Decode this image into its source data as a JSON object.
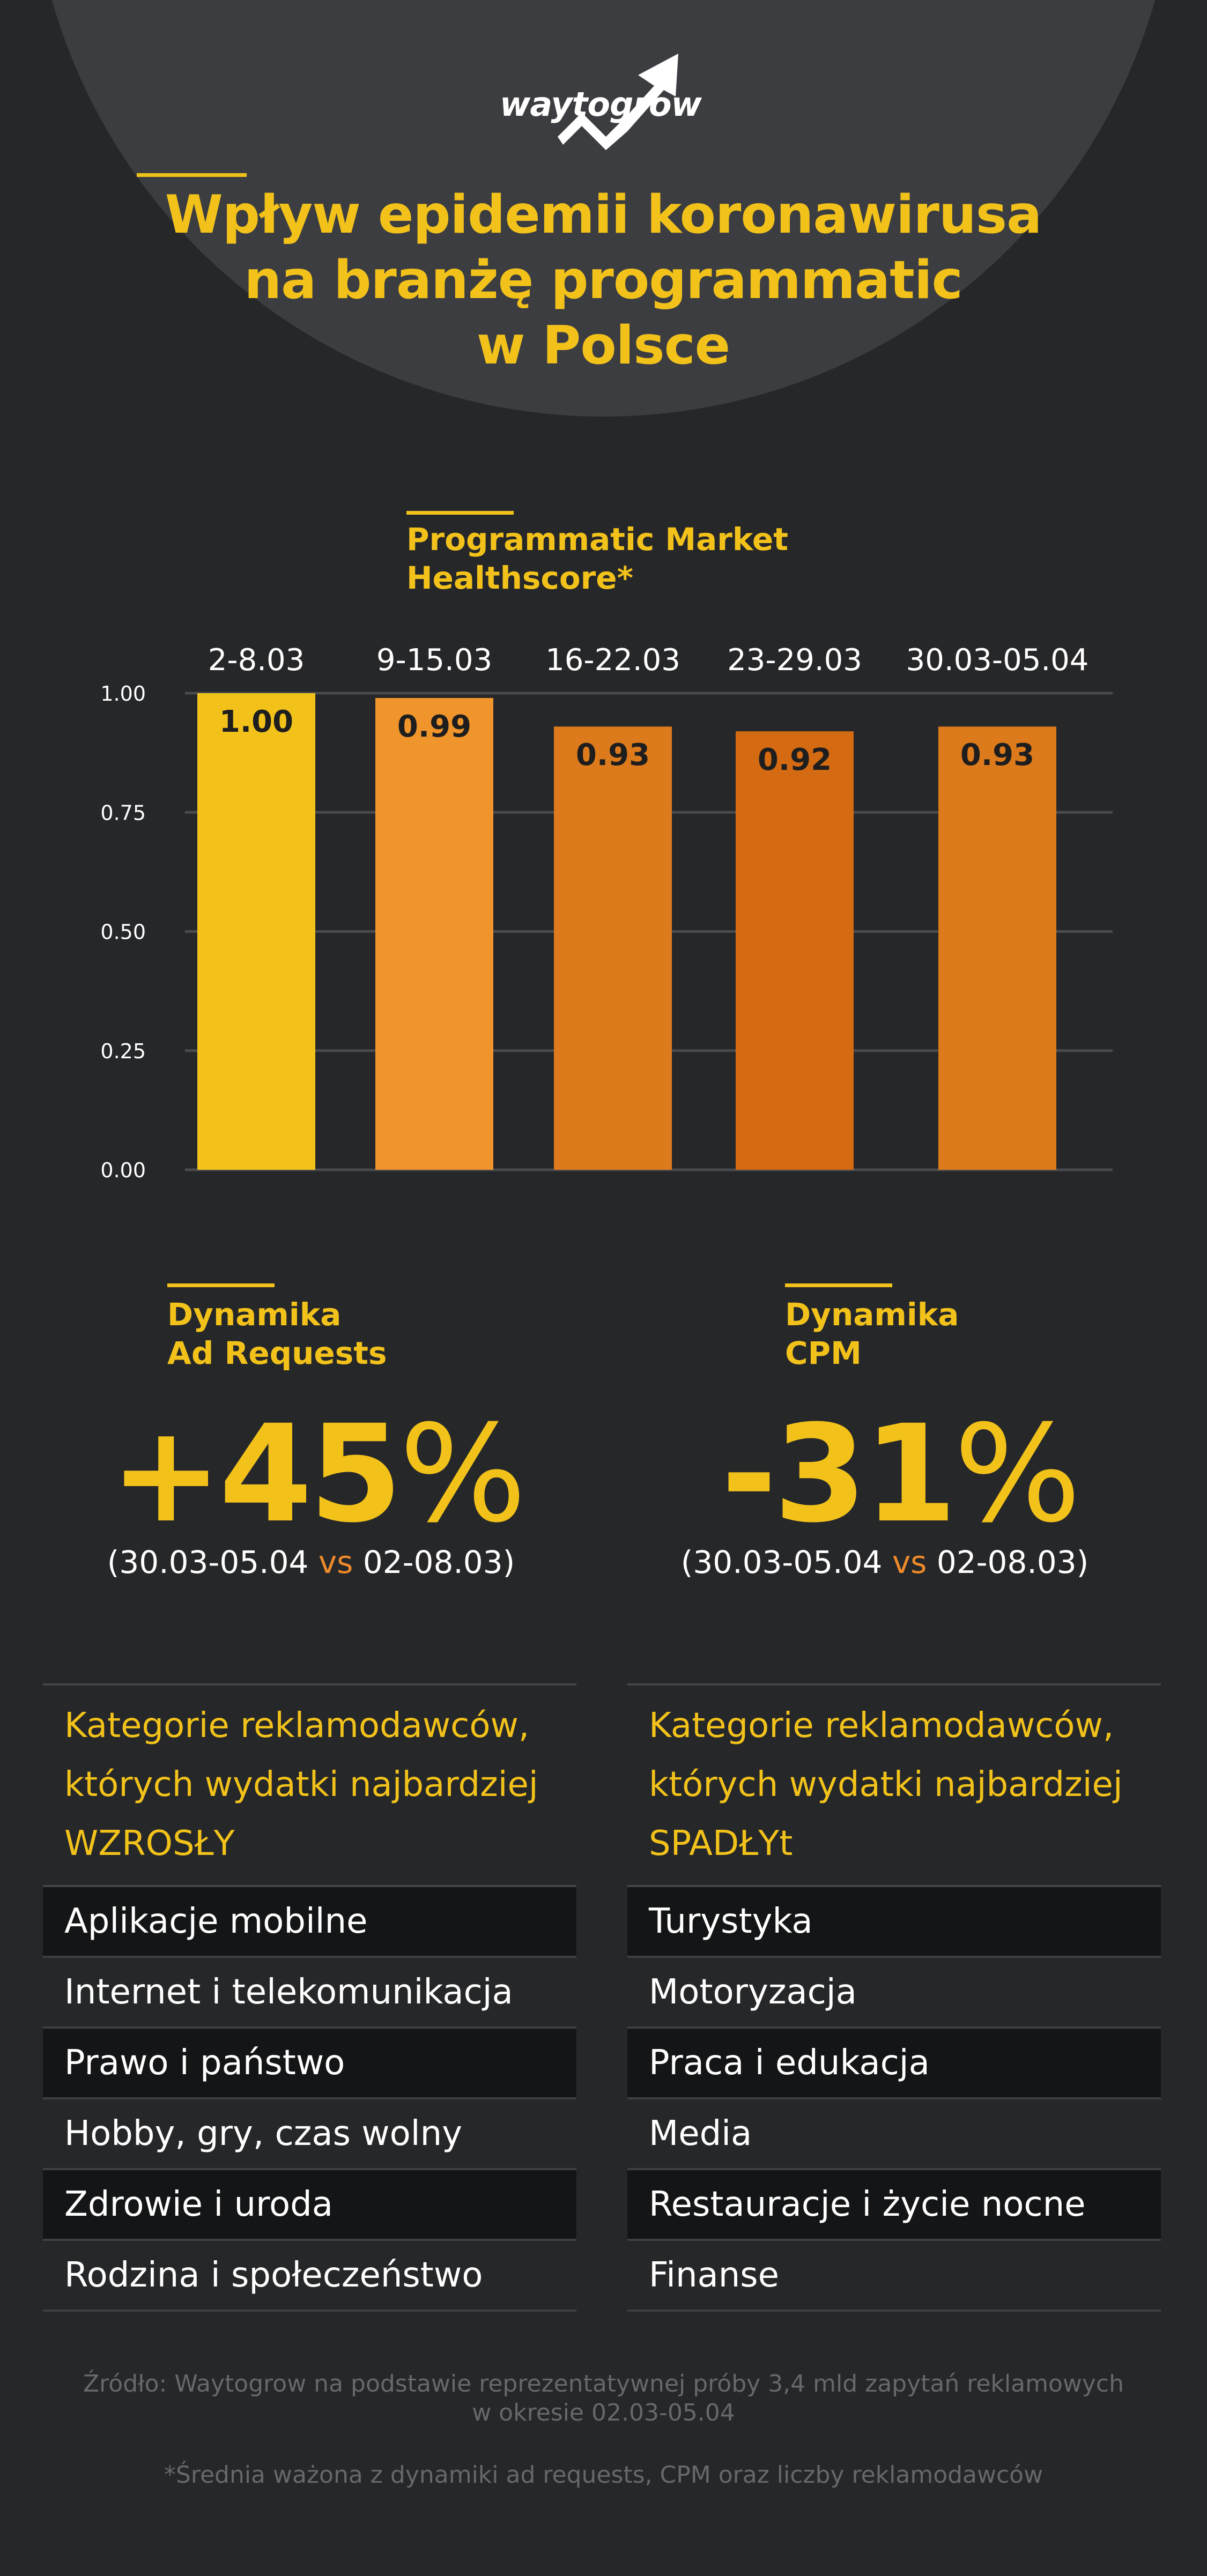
{
  "logo": {
    "text": "waytogrow"
  },
  "title": {
    "line1": "Wpływ epidemii koronawirusa",
    "line2": "na branżę programmatic",
    "line3": "w Polsce"
  },
  "chart_section_label": "Programmatic Market\nHealthscore*",
  "chart_data": {
    "type": "bar",
    "categories": [
      "2-8.03",
      "9-15.03",
      "16-22.03",
      "23-29.03",
      "30.03-05.04"
    ],
    "values": [
      1.0,
      0.99,
      0.93,
      0.92,
      0.93
    ],
    "value_labels": [
      "1.00",
      "0.99",
      "0.93",
      "0.92",
      "0.93"
    ],
    "ylim": [
      0,
      1.0
    ],
    "y_ticks": [
      "0.00",
      "0.25",
      "0.50",
      "0.75",
      "1.00"
    ],
    "y_tick_values": [
      0,
      0.25,
      0.5,
      0.75,
      1.0
    ],
    "bar_colors": [
      "#f2c21b",
      "#f0942c",
      "#dd7a1c",
      "#d46a12",
      "#dd7a1c"
    ],
    "grid": true,
    "title": "",
    "xlabel": "",
    "ylabel": ""
  },
  "ad_requests": {
    "label": "Dynamika\nAd Requests",
    "value": "+45",
    "percent": "%",
    "period_start": "(30.03-05.04 ",
    "vs": "vs",
    "period_end": " 02-08.03)"
  },
  "cpm": {
    "label": "Dynamika\nCPM",
    "value": "-31",
    "percent": "%",
    "period_start": "(30.03-05.04 ",
    "vs": "vs",
    "period_end": " 02-08.03)"
  },
  "increased": {
    "heading_line1": "Kategorie reklamodawców,",
    "heading_line2": "których wydatki najbardziej",
    "heading_line3": "WZROSŁY",
    "items": [
      "Aplikacje mobilne",
      "Internet i telekomunikacja",
      "Prawo i państwo",
      "Hobby, gry, czas wolny",
      "Zdrowie i uroda",
      "Rodzina i społeczeństwo"
    ]
  },
  "decreased": {
    "heading_line1": "Kategorie reklamodawców,",
    "heading_line2": "których wydatki najbardziej",
    "heading_line3": "SPADŁYt",
    "items": [
      "Turystyka",
      "Motoryzacja",
      "Praca i edukacja",
      "Media",
      "Restauracje i życie nocne",
      "Finanse"
    ]
  },
  "source": {
    "line1": "Źródło: Waytogrow na podstawie reprezentatywnej próby 3,4 mld zapytań reklamowych",
    "line2": "w okresie 02.03-05.04"
  },
  "footnote": "*Średnia ważona z dynamiki ad requests, CPM oraz liczby reklamodawców",
  "colors": {
    "background": "#262729",
    "circle": "#3c3d40",
    "accent_yellow": "#f2c21b",
    "accent_orange": "#ef8a2b"
  }
}
